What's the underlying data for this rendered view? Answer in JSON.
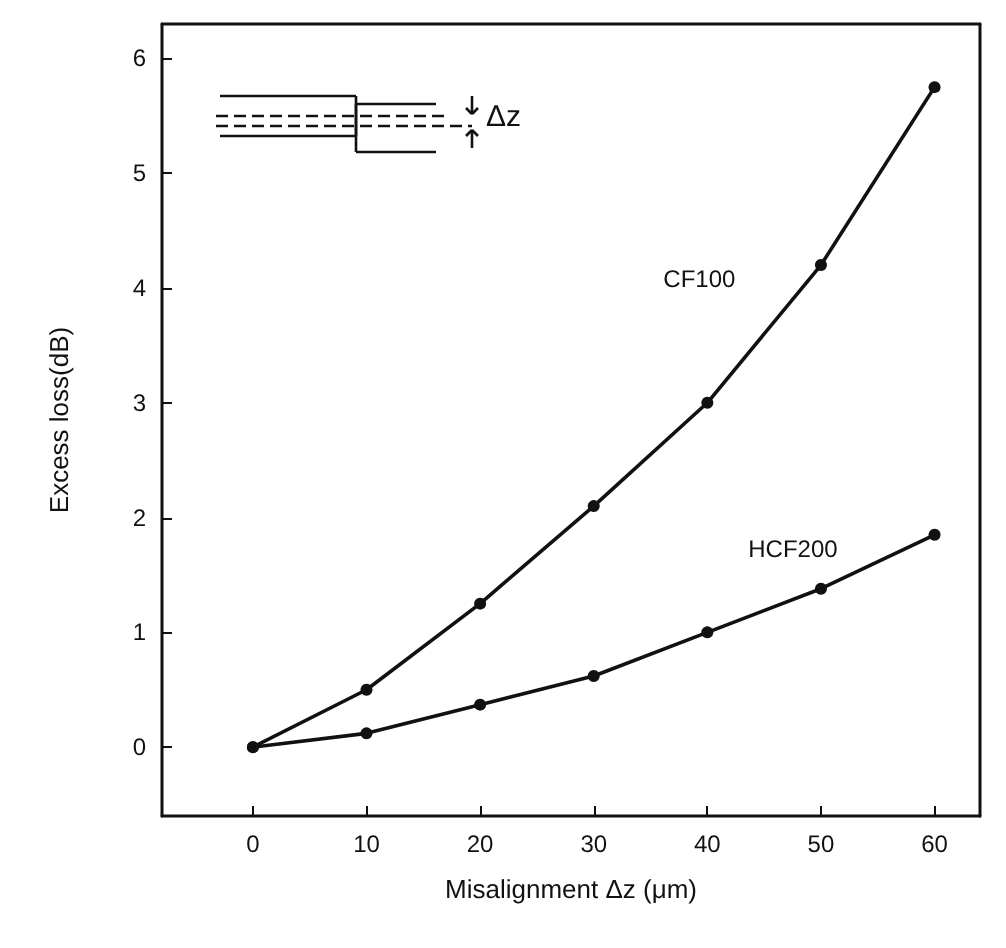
{
  "chart_data": {
    "type": "line",
    "xlabel": "Misalignment Δz (μm)",
    "ylabel": "Excess loss(dB)",
    "x": [
      0,
      10,
      20,
      30,
      40,
      50,
      60
    ],
    "series": [
      {
        "name": "CF100",
        "color": "#111111",
        "values": [
          0,
          0.5,
          1.25,
          2.1,
          3.0,
          4.2,
          5.75
        ]
      },
      {
        "name": "HCF200",
        "color": "#111111",
        "values": [
          0,
          0.12,
          0.37,
          0.62,
          1.0,
          1.38,
          1.85
        ]
      }
    ],
    "annotations": [
      "Δz"
    ],
    "xlim": [
      -8,
      64
    ],
    "xticks": [
      0,
      10,
      20,
      30,
      40,
      50,
      60
    ],
    "ylim": [
      -0.6,
      6.3
    ],
    "yticks": [
      0,
      1,
      2,
      3,
      4,
      5,
      6
    ],
    "grid": false,
    "legend": false,
    "marker": "circle",
    "line_style": "solid"
  }
}
